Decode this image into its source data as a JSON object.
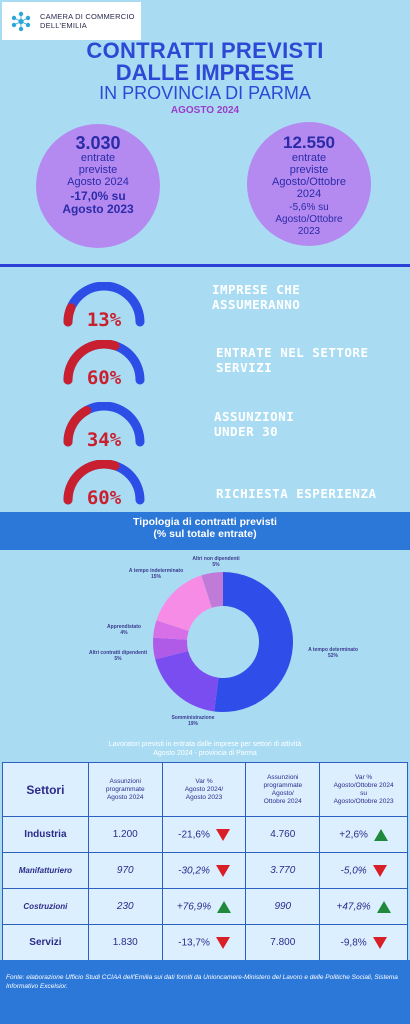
{
  "header": {
    "org_line1": "CAMERA DI COMMERCIO",
    "org_line2": "DELL'EMILIA",
    "title_line1": "CONTRATTI PREVISTI",
    "title_line2": "DALLE IMPRESE",
    "title_line3": "IN PROVINCIA DI PARMA",
    "period": "AGOSTO 2024",
    "brand_color": "#2c49d6",
    "logo_icon": "network-dots-icon"
  },
  "kpis": [
    {
      "number": "3.030",
      "l1": "entrate",
      "l2": "previste",
      "l3": "Agosto 2024",
      "var1": "-17,0% su",
      "var2": "Agosto 2023"
    },
    {
      "number": "12.550",
      "l1": "entrate",
      "l2": "previste",
      "l3": "Agosto/Ottobre",
      "l4": "2024",
      "var1": "-5,6% su",
      "var2": "Agosto/Ottobre",
      "var3": "2023"
    }
  ],
  "gauges": [
    {
      "value": 13,
      "label": "13%",
      "text1": "IMPRESE CHE",
      "text2": "ASSUMERANNO"
    },
    {
      "value": 60,
      "label": "60%",
      "text1": "ENTRATE NEL SETTORE",
      "text2": "SERVIZI"
    },
    {
      "value": 34,
      "label": "34%",
      "text1": "ASSUNZIONI",
      "text2": "UNDER 30"
    },
    {
      "value": 60,
      "label": "60%",
      "text1": "RICHIESTA ESPERIENZA",
      "text2": ""
    }
  ],
  "gauge_colors": {
    "filled": "#c9202f",
    "rest": "#2c4ee6"
  },
  "chart_data": {
    "type": "pie",
    "title": "Tipologia di contratti previsti",
    "subtitle": "(% sul totale entrate)",
    "slices": [
      {
        "name": "A tempo determinato",
        "value": 52,
        "label": "52%",
        "color": "#2f4de8"
      },
      {
        "name": "Somministrazione",
        "value": 19,
        "label": "19%",
        "color": "#7a4df0"
      },
      {
        "name": "Altri contratti dipendenti",
        "value": 5,
        "label": "5%",
        "color": "#b05be8"
      },
      {
        "name": "Apprendistato",
        "value": 4,
        "label": "4%",
        "color": "#d66fe8"
      },
      {
        "name": "A tempo indeterminato",
        "value": 15,
        "label": "15%",
        "color": "#f78ce6"
      },
      {
        "name": "Altri non dipendenti",
        "value": 5,
        "label": "5%",
        "color": "#c07ad8"
      }
    ]
  },
  "table": {
    "title_line1": "Lavoratori previsti in entrata dalle imprese per settori di attività",
    "title_line2": "Agosto 2024 - provincia di Parma",
    "headers": {
      "settori": "Settori",
      "h1": [
        "Assunzioni",
        "programmate",
        "Agosto 2024"
      ],
      "h2": [
        "Var %",
        "Agosto 2024/",
        "Agosto 2023"
      ],
      "h3": [
        "Assunzioni",
        "programmate",
        "Agosto/",
        "Ottobre 2024"
      ],
      "h4": [
        "Var %",
        "Agosto/Ottobre 2024",
        "su",
        "Agosto/Ottobre 2023"
      ]
    },
    "rows": [
      {
        "name": "Industria",
        "a1": "1.200",
        "v1": "-21,6%",
        "t1": "down",
        "a2": "4.760",
        "v2": "+2,6%",
        "t2": "up"
      },
      {
        "name": "Manifatturiero",
        "a1": "970",
        "v1": "-30,2%",
        "t1": "down",
        "a2": "3.770",
        "v2": "-5,0%",
        "t2": "down"
      },
      {
        "name": "Costruzioni",
        "a1": "230",
        "v1": "+76,9%",
        "t1": "up",
        "a2": "990",
        "v2": "+47,8%",
        "t2": "up"
      },
      {
        "name": "Servizi",
        "a1": "1.830",
        "v1": "-13,7%",
        "t1": "down",
        "a2": "7.800",
        "v2": "-9,8%",
        "t2": "down"
      }
    ]
  },
  "footer": {
    "source": "Fonte: elaborazione Ufficio Studi CCIAA dell'Emilia sui dati forniti da Unioncamere-Ministero del Lavoro e delle Politiche Sociali, Sistema Informativo Excelsior."
  }
}
